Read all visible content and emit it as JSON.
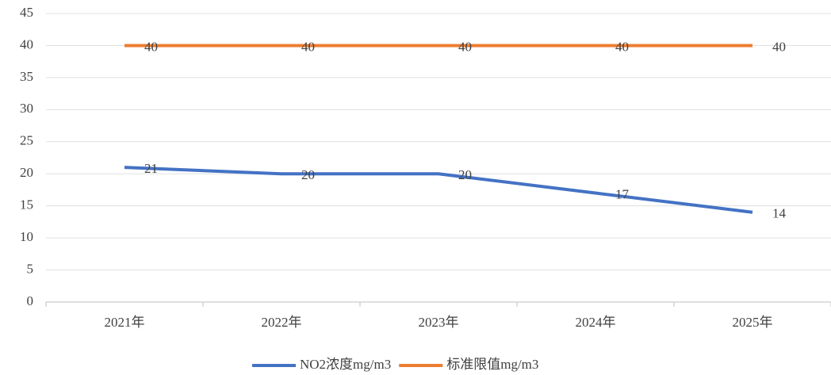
{
  "chart_data": {
    "type": "line",
    "categories": [
      "2021年",
      "2022年",
      "2023年",
      "2024年",
      "2025年"
    ],
    "series": [
      {
        "name": "NO2浓度mg/m3",
        "color": "#4472c4",
        "values": [
          21,
          20,
          20,
          17,
          14
        ]
      },
      {
        "name": "标准限值mg/m3",
        "color": "#ed7d31",
        "values": [
          40,
          40,
          40,
          40,
          40
        ]
      }
    ],
    "ylim": [
      0,
      45
    ],
    "yticks": [
      0,
      5,
      10,
      15,
      20,
      25,
      30,
      35,
      40,
      45
    ],
    "grid": true,
    "legend": "bottom"
  }
}
